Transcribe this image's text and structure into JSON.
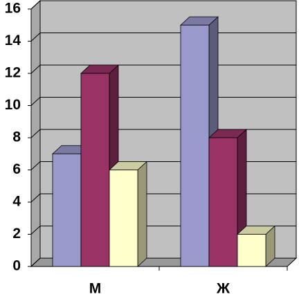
{
  "chart_data": {
    "type": "bar3d",
    "categories": [
      "М",
      "Ж"
    ],
    "series": [
      {
        "color": "#9999cc",
        "values": [
          7,
          15
        ]
      },
      {
        "color": "#993366",
        "values": [
          12,
          8
        ]
      },
      {
        "color": "#ffffcc",
        "values": [
          6,
          2
        ]
      }
    ],
    "ylim": [
      0,
      16
    ],
    "yticks": [
      0,
      2,
      4,
      6,
      8,
      10,
      12,
      14,
      16
    ],
    "grid": true
  }
}
